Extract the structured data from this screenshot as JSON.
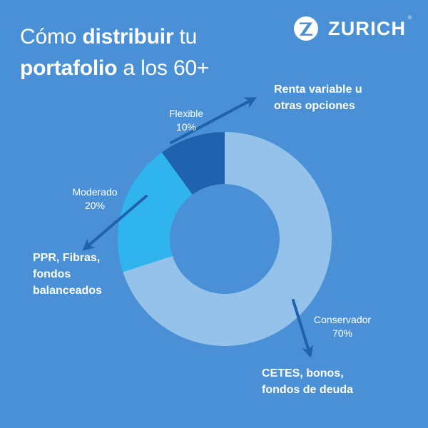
{
  "title": {
    "line1_normal": "Cómo ",
    "line1_bold": "distribuir",
    "line1_tail": " tu",
    "line2_bold": "portafolio",
    "line2_tail": " a los 60+"
  },
  "brand": {
    "name": "ZURICH",
    "registered": "®"
  },
  "colors": {
    "background": "#4a90d6",
    "conservador": "#95c2ea",
    "moderado": "#2fb4ee",
    "flexible": "#1f62ad",
    "text": "#ffffff"
  },
  "chart_data": {
    "type": "pie",
    "style": "donut",
    "title": "Cómo distribuir tu portafolio a los 60+",
    "series": [
      {
        "name": "Conservador",
        "value": 70,
        "label": "70%",
        "color": "#95c2ea"
      },
      {
        "name": "Moderado",
        "value": 20,
        "label": "20%",
        "color": "#2fb4ee"
      },
      {
        "name": "Flexible",
        "value": 10,
        "label": "10%",
        "color": "#1f62ad"
      }
    ],
    "annotations": [
      {
        "segment": "Flexible",
        "lines": [
          "Renta variable u",
          "otras opciones"
        ]
      },
      {
        "segment": "Moderado",
        "lines": [
          "PPR, Fibras,",
          "fondos",
          "balanceados"
        ]
      },
      {
        "segment": "Conservador",
        "lines": [
          "CETES, bonos,",
          "fondos de deuda"
        ]
      }
    ]
  }
}
